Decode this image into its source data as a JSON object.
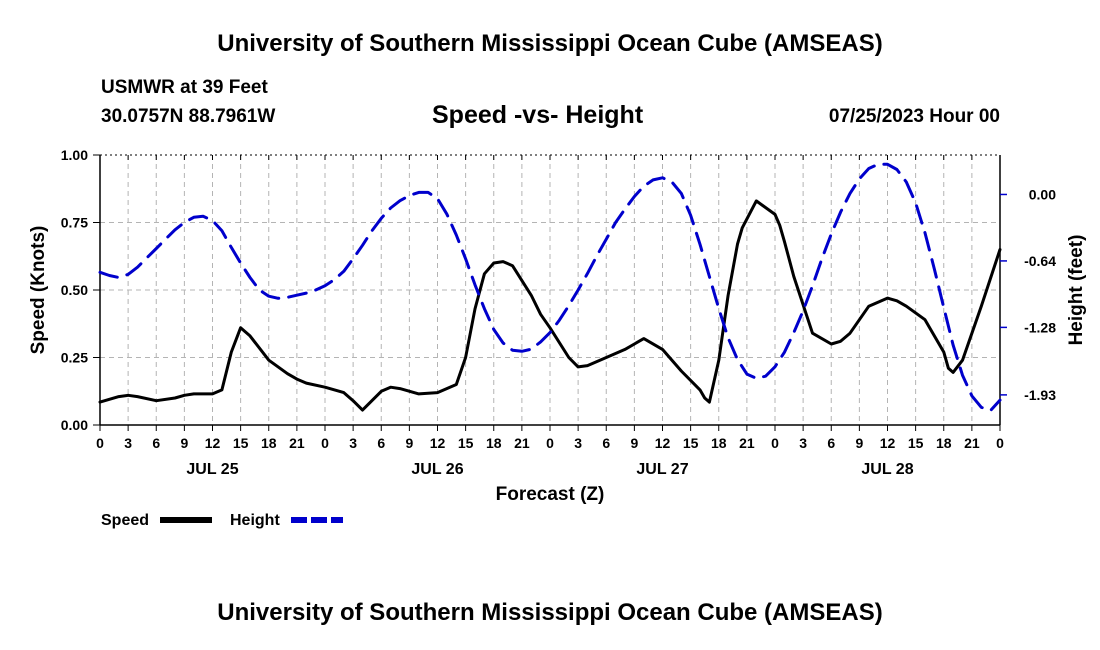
{
  "page_title": "University of Southern Mississippi Ocean Cube (AMSEAS)",
  "footer_title": "University of Southern Mississippi Ocean Cube (AMSEAS)",
  "station": "USMWR at 39 Feet",
  "coords": "30.0757N  88.7961W",
  "datetime": "07/25/2023 Hour 00",
  "colors": {
    "speed": "#000000",
    "height": "#0000cc",
    "grid": "#b4b4b4"
  },
  "chart_data": {
    "type": "line",
    "title": "Speed -vs- Height",
    "xlabel": "Forecast (Z)",
    "ylabel": "Speed (Knots)",
    "y2label": "Height (feet)",
    "xlim": [
      0,
      96
    ],
    "ylim": [
      0,
      1
    ],
    "y2lim": [
      0.38,
      -2.22
    ],
    "x_ticks": [
      0,
      3,
      6,
      9,
      12,
      15,
      18,
      21,
      24,
      27,
      30,
      33,
      36,
      39,
      42,
      45,
      48,
      51,
      54,
      57,
      60,
      63,
      66,
      69,
      72,
      75,
      78,
      81,
      84,
      87,
      90,
      93,
      96
    ],
    "x_tick_labels": [
      "0",
      "3",
      "6",
      "9",
      "12",
      "15",
      "18",
      "21",
      "0",
      "3",
      "6",
      "9",
      "12",
      "15",
      "18",
      "21",
      "0",
      "3",
      "6",
      "9",
      "12",
      "15",
      "18",
      "21",
      "0",
      "3",
      "6",
      "9",
      "12",
      "15",
      "18",
      "21",
      "0"
    ],
    "y_ticks": [
      0,
      0.25,
      0.5,
      0.75,
      1.0
    ],
    "y_tick_labels": [
      "0.00",
      "0.25",
      "0.50",
      "0.75",
      "1.00"
    ],
    "y2_ticks": [
      0,
      -0.64,
      -1.28,
      -1.93
    ],
    "y2_tick_labels": [
      "0.00",
      "-0.64",
      "-1.28",
      "-1.93"
    ],
    "day_labels": [
      {
        "x": 12,
        "label": "JUL 25"
      },
      {
        "x": 36,
        "label": "JUL 26"
      },
      {
        "x": 60,
        "label": "JUL 27"
      },
      {
        "x": 84,
        "label": "JUL 28"
      }
    ],
    "grid": true,
    "legend_position": "bottom-left",
    "series": [
      {
        "name": "Speed",
        "axis": "left",
        "style": "solid",
        "x": [
          0,
          2,
          3,
          4,
          6,
          8,
          9,
          10,
          12,
          13,
          14,
          15,
          16,
          18,
          20,
          21,
          22,
          24,
          26,
          27,
          28,
          30,
          31,
          32,
          34,
          36,
          38,
          39,
          40,
          41,
          42,
          43,
          44,
          46,
          47,
          48,
          50,
          51,
          52,
          54,
          56,
          57,
          58,
          60,
          62,
          64,
          64.5,
          65,
          66,
          67,
          68,
          68.5,
          70,
          72,
          72.5,
          73,
          74,
          76,
          78,
          79,
          80,
          81,
          82,
          84,
          85,
          86,
          88,
          90,
          90.5,
          91,
          92,
          94,
          96
        ],
        "y": [
          0.085,
          0.105,
          0.11,
          0.105,
          0.09,
          0.1,
          0.11,
          0.115,
          0.115,
          0.13,
          0.27,
          0.36,
          0.33,
          0.24,
          0.19,
          0.17,
          0.155,
          0.14,
          0.12,
          0.09,
          0.055,
          0.125,
          0.14,
          0.135,
          0.115,
          0.12,
          0.15,
          0.25,
          0.43,
          0.56,
          0.6,
          0.605,
          0.59,
          0.48,
          0.41,
          0.36,
          0.25,
          0.215,
          0.22,
          0.25,
          0.28,
          0.3,
          0.32,
          0.28,
          0.2,
          0.13,
          0.1,
          0.085,
          0.24,
          0.48,
          0.67,
          0.73,
          0.83,
          0.78,
          0.74,
          0.68,
          0.55,
          0.34,
          0.3,
          0.31,
          0.34,
          0.39,
          0.44,
          0.47,
          0.46,
          0.44,
          0.39,
          0.27,
          0.21,
          0.195,
          0.24,
          0.44,
          0.65
        ]
      },
      {
        "name": "Height",
        "axis": "right",
        "style": "dashed",
        "x": [
          0,
          1,
          2,
          3,
          4,
          5,
          6,
          7,
          8,
          9,
          10,
          11,
          12,
          13,
          14,
          15,
          16,
          17,
          18,
          19,
          20,
          21,
          22,
          23,
          24,
          25,
          26,
          27,
          28,
          29,
          30,
          31,
          32,
          33,
          34,
          35,
          36,
          37,
          38,
          39,
          40,
          41,
          42,
          43,
          44,
          45,
          46,
          47,
          48,
          49,
          50,
          51,
          52,
          53,
          54,
          55,
          56,
          57,
          58,
          59,
          60,
          61,
          62,
          63,
          64,
          65,
          66,
          67,
          68,
          69,
          70,
          71,
          72,
          73,
          74,
          75,
          76,
          77,
          78,
          79,
          80,
          81,
          82,
          83,
          84,
          85,
          86,
          87,
          88,
          89,
          90,
          91,
          92,
          93,
          94,
          95,
          96
        ],
        "y": [
          -0.75,
          -0.78,
          -0.8,
          -0.77,
          -0.7,
          -0.61,
          -0.52,
          -0.43,
          -0.34,
          -0.27,
          -0.22,
          -0.21,
          -0.25,
          -0.35,
          -0.51,
          -0.66,
          -0.8,
          -0.92,
          -0.98,
          -1.0,
          -0.99,
          -0.97,
          -0.95,
          -0.92,
          -0.88,
          -0.82,
          -0.74,
          -0.62,
          -0.49,
          -0.35,
          -0.23,
          -0.13,
          -0.06,
          -0.01,
          0.02,
          0.02,
          -0.04,
          -0.19,
          -0.39,
          -0.62,
          -0.87,
          -1.1,
          -1.3,
          -1.43,
          -1.5,
          -1.51,
          -1.49,
          -1.42,
          -1.33,
          -1.21,
          -1.07,
          -0.92,
          -0.76,
          -0.59,
          -0.43,
          -0.27,
          -0.14,
          -0.02,
          0.08,
          0.14,
          0.16,
          0.12,
          0.01,
          -0.2,
          -0.48,
          -0.79,
          -1.1,
          -1.38,
          -1.59,
          -1.73,
          -1.77,
          -1.75,
          -1.66,
          -1.52,
          -1.33,
          -1.12,
          -0.88,
          -0.62,
          -0.38,
          -0.17,
          0.01,
          0.15,
          0.25,
          0.29,
          0.29,
          0.24,
          0.12,
          -0.08,
          -0.37,
          -0.72,
          -1.09,
          -1.45,
          -1.74,
          -1.94,
          -2.05,
          -2.08,
          -1.98
        ]
      }
    ]
  }
}
